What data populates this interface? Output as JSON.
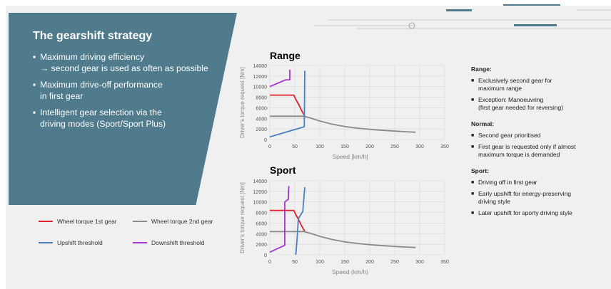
{
  "panel": {
    "title": "The gearshift strategy",
    "bullets": [
      "Maximum driving efficiency\n→ second gear is used as often as possible",
      "Maximum drive-off performance\nin first gear",
      "Intelligent gear selection via the\ndriving modes (Sport/Sport Plus)"
    ]
  },
  "charts": [
    {
      "title": "Range",
      "ylabel": "Driver's torque request [Nm]",
      "xlabel": "Speed [km/h]",
      "yticks": [
        "0",
        "2000",
        "4000",
        "6000",
        "8000",
        "10000",
        "12000",
        "14000"
      ],
      "xticks": [
        "0",
        "50",
        "100",
        "150",
        "200",
        "250",
        "300",
        "350"
      ]
    },
    {
      "title": "Sport",
      "ylabel": "Driver's torque request [Nm]",
      "xlabel": "Speed (km/h)",
      "yticks": [
        "0",
        "2000",
        "4000",
        "6000",
        "8000",
        "10000",
        "12000",
        "14000"
      ],
      "xticks": [
        "0",
        "50",
        "100",
        "150",
        "200",
        "250",
        "300",
        "350"
      ]
    }
  ],
  "legend": {
    "items": [
      {
        "label": "Wheel torque 1st gear",
        "color": "#e0202a"
      },
      {
        "label": "Wheel torque 2nd gear",
        "color": "#8a8a8a"
      },
      {
        "label": "Upshift threshold",
        "color": "#4a7fc0"
      },
      {
        "label": "Downshift threshold",
        "color": "#a535c8"
      }
    ]
  },
  "notes": [
    {
      "heading": "Range:",
      "items": [
        "Exclusively second gear for\nmaximum range",
        "Exception: Manoeuvring\n(first gear needed for reversing)"
      ]
    },
    {
      "heading": "Normal:",
      "items": [
        "Second gear prioritised",
        "First gear is requested only if almost\nmaximum torque is demanded"
      ]
    },
    {
      "heading": "Sport:",
      "items": [
        "Driving off in first gear",
        "Early upshift for energy-preserving\ndriving style",
        "Later upshift for sporty driving style"
      ]
    }
  ],
  "chart_data": [
    {
      "type": "line",
      "title": "Range",
      "xlabel": "Speed [km/h]",
      "ylabel": "Driver's torque request [Nm]",
      "xlim": [
        0,
        350
      ],
      "ylim": [
        0,
        14000
      ],
      "series": [
        {
          "name": "Wheel torque 1st gear",
          "color": "#e0202a",
          "points": [
            [
              0,
              8400
            ],
            [
              48,
              8400
            ],
            [
              52,
              7600
            ],
            [
              58,
              6600
            ],
            [
              63,
              5600
            ],
            [
              67,
              4900
            ],
            [
              70,
              4500
            ]
          ]
        },
        {
          "name": "Wheel torque 2nd gear",
          "color": "#8a8a8a",
          "points": [
            [
              0,
              4400
            ],
            [
              68,
              4400
            ],
            [
              80,
              4100
            ],
            [
              100,
              3500
            ],
            [
              125,
              2900
            ],
            [
              150,
              2450
            ],
            [
              180,
              2100
            ],
            [
              210,
              1850
            ],
            [
              240,
              1650
            ],
            [
              270,
              1480
            ],
            [
              292,
              1380
            ]
          ]
        },
        {
          "name": "Upshift threshold",
          "color": "#4a7fc0",
          "points": [
            [
              0,
              500
            ],
            [
              68,
              2400
            ],
            [
              69,
              2400
            ],
            [
              70,
              13000
            ]
          ]
        },
        {
          "name": "Downshift threshold",
          "color": "#a535c8",
          "points": [
            [
              0,
              10000
            ],
            [
              32,
              11300
            ],
            [
              40,
              11300
            ],
            [
              40,
              13200
            ]
          ]
        }
      ]
    },
    {
      "type": "line",
      "title": "Sport",
      "xlabel": "Speed (km/h)",
      "ylabel": "Driver's torque request [Nm]",
      "xlim": [
        0,
        350
      ],
      "ylim": [
        0,
        14000
      ],
      "series": [
        {
          "name": "Wheel torque 1st gear",
          "color": "#e0202a",
          "points": [
            [
              0,
              8400
            ],
            [
              48,
              8400
            ],
            [
              52,
              7600
            ],
            [
              58,
              6600
            ],
            [
              63,
              5600
            ],
            [
              67,
              4900
            ],
            [
              70,
              4500
            ]
          ]
        },
        {
          "name": "Wheel torque 2nd gear",
          "color": "#8a8a8a",
          "points": [
            [
              0,
              4400
            ],
            [
              68,
              4400
            ],
            [
              80,
              4100
            ],
            [
              100,
              3500
            ],
            [
              125,
              2900
            ],
            [
              150,
              2450
            ],
            [
              180,
              2100
            ],
            [
              210,
              1850
            ],
            [
              240,
              1650
            ],
            [
              270,
              1480
            ],
            [
              292,
              1380
            ]
          ]
        },
        {
          "name": "Upshift threshold",
          "color": "#4a7fc0",
          "points": [
            [
              52,
              0
            ],
            [
              55,
              3500
            ],
            [
              57,
              6800
            ],
            [
              62,
              7600
            ],
            [
              66,
              8200
            ],
            [
              68,
              10500
            ],
            [
              70,
              12800
            ]
          ]
        },
        {
          "name": "Downshift threshold",
          "color": "#a535c8",
          "points": [
            [
              0,
              500
            ],
            [
              30,
              1800
            ],
            [
              30,
              10000
            ],
            [
              37,
              10500
            ],
            [
              38,
              13000
            ]
          ]
        }
      ]
    }
  ]
}
